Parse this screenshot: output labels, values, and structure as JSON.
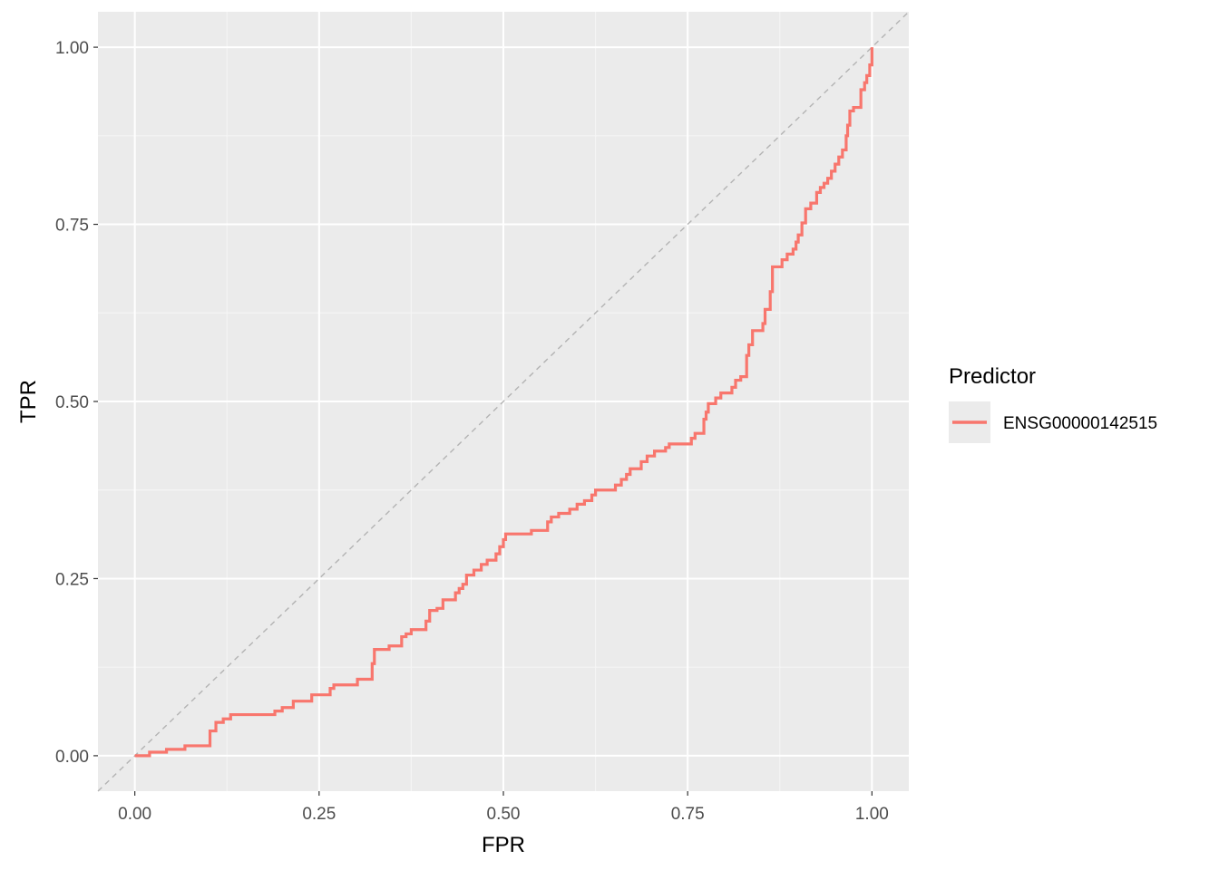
{
  "chart_data": {
    "type": "line",
    "title": "",
    "xlabel": "FPR",
    "ylabel": "TPR",
    "xlim": [
      -0.05,
      1.05
    ],
    "ylim": [
      -0.05,
      1.05
    ],
    "x_ticks": [
      "0.00",
      "0.25",
      "0.50",
      "0.75",
      "1.00"
    ],
    "y_ticks": [
      "0.00",
      "0.25",
      "0.50",
      "0.75",
      "1.00"
    ],
    "grid": true,
    "legend_position": "right",
    "legend_title": "Predictor",
    "colors": {
      "panel_background": "#EBEBEB",
      "grid_major": "#FFFFFF",
      "grid_minor": "#F5F5F5",
      "diagonal": "#B3B3B3",
      "series": "#F8766D",
      "legend_key_background": "#EBEBEB"
    },
    "reference_line": {
      "style": "dashed",
      "from": [
        0,
        0
      ],
      "to": [
        1,
        1
      ]
    },
    "series": [
      {
        "name": "ENSG00000142515",
        "line_style": "step",
        "points": [
          [
            0.0,
            0.0
          ],
          [
            0.02,
            0.0
          ],
          [
            0.02,
            0.005
          ],
          [
            0.043,
            0.005
          ],
          [
            0.043,
            0.009
          ],
          [
            0.068,
            0.009
          ],
          [
            0.068,
            0.014
          ],
          [
            0.102,
            0.014
          ],
          [
            0.102,
            0.035
          ],
          [
            0.11,
            0.035
          ],
          [
            0.11,
            0.047
          ],
          [
            0.12,
            0.047
          ],
          [
            0.12,
            0.052
          ],
          [
            0.13,
            0.052
          ],
          [
            0.13,
            0.058
          ],
          [
            0.19,
            0.058
          ],
          [
            0.19,
            0.063
          ],
          [
            0.2,
            0.063
          ],
          [
            0.2,
            0.068
          ],
          [
            0.215,
            0.068
          ],
          [
            0.215,
            0.077
          ],
          [
            0.24,
            0.077
          ],
          [
            0.24,
            0.086
          ],
          [
            0.265,
            0.086
          ],
          [
            0.265,
            0.095
          ],
          [
            0.27,
            0.095
          ],
          [
            0.27,
            0.1
          ],
          [
            0.302,
            0.1
          ],
          [
            0.302,
            0.108
          ],
          [
            0.322,
            0.108
          ],
          [
            0.322,
            0.13
          ],
          [
            0.325,
            0.13
          ],
          [
            0.325,
            0.15
          ],
          [
            0.345,
            0.15
          ],
          [
            0.345,
            0.155
          ],
          [
            0.362,
            0.155
          ],
          [
            0.362,
            0.168
          ],
          [
            0.368,
            0.168
          ],
          [
            0.368,
            0.172
          ],
          [
            0.375,
            0.172
          ],
          [
            0.375,
            0.178
          ],
          [
            0.395,
            0.178
          ],
          [
            0.395,
            0.19
          ],
          [
            0.4,
            0.19
          ],
          [
            0.4,
            0.205
          ],
          [
            0.41,
            0.205
          ],
          [
            0.41,
            0.208
          ],
          [
            0.418,
            0.208
          ],
          [
            0.418,
            0.22
          ],
          [
            0.435,
            0.22
          ],
          [
            0.435,
            0.23
          ],
          [
            0.44,
            0.23
          ],
          [
            0.44,
            0.236
          ],
          [
            0.445,
            0.236
          ],
          [
            0.445,
            0.242
          ],
          [
            0.45,
            0.242
          ],
          [
            0.45,
            0.255
          ],
          [
            0.46,
            0.255
          ],
          [
            0.46,
            0.262
          ],
          [
            0.47,
            0.262
          ],
          [
            0.47,
            0.27
          ],
          [
            0.478,
            0.27
          ],
          [
            0.478,
            0.276
          ],
          [
            0.49,
            0.276
          ],
          [
            0.49,
            0.285
          ],
          [
            0.495,
            0.285
          ],
          [
            0.495,
            0.295
          ],
          [
            0.5,
            0.295
          ],
          [
            0.5,
            0.305
          ],
          [
            0.503,
            0.305
          ],
          [
            0.503,
            0.313
          ],
          [
            0.538,
            0.313
          ],
          [
            0.538,
            0.318
          ],
          [
            0.56,
            0.318
          ],
          [
            0.56,
            0.33
          ],
          [
            0.565,
            0.33
          ],
          [
            0.565,
            0.337
          ],
          [
            0.575,
            0.337
          ],
          [
            0.575,
            0.342
          ],
          [
            0.59,
            0.342
          ],
          [
            0.59,
            0.348
          ],
          [
            0.6,
            0.348
          ],
          [
            0.6,
            0.355
          ],
          [
            0.61,
            0.355
          ],
          [
            0.61,
            0.36
          ],
          [
            0.62,
            0.36
          ],
          [
            0.62,
            0.368
          ],
          [
            0.625,
            0.368
          ],
          [
            0.625,
            0.375
          ],
          [
            0.652,
            0.375
          ],
          [
            0.652,
            0.382
          ],
          [
            0.66,
            0.382
          ],
          [
            0.66,
            0.39
          ],
          [
            0.667,
            0.39
          ],
          [
            0.667,
            0.397
          ],
          [
            0.672,
            0.397
          ],
          [
            0.672,
            0.405
          ],
          [
            0.687,
            0.405
          ],
          [
            0.687,
            0.415
          ],
          [
            0.695,
            0.415
          ],
          [
            0.695,
            0.423
          ],
          [
            0.705,
            0.423
          ],
          [
            0.705,
            0.43
          ],
          [
            0.72,
            0.43
          ],
          [
            0.72,
            0.435
          ],
          [
            0.725,
            0.435
          ],
          [
            0.725,
            0.44
          ],
          [
            0.755,
            0.44
          ],
          [
            0.755,
            0.448
          ],
          [
            0.76,
            0.448
          ],
          [
            0.76,
            0.455
          ],
          [
            0.772,
            0.455
          ],
          [
            0.772,
            0.475
          ],
          [
            0.775,
            0.475
          ],
          [
            0.775,
            0.485
          ],
          [
            0.778,
            0.485
          ],
          [
            0.778,
            0.497
          ],
          [
            0.788,
            0.497
          ],
          [
            0.788,
            0.505
          ],
          [
            0.795,
            0.505
          ],
          [
            0.795,
            0.512
          ],
          [
            0.81,
            0.512
          ],
          [
            0.81,
            0.52
          ],
          [
            0.815,
            0.52
          ],
          [
            0.815,
            0.53
          ],
          [
            0.822,
            0.53
          ],
          [
            0.822,
            0.535
          ],
          [
            0.83,
            0.535
          ],
          [
            0.83,
            0.565
          ],
          [
            0.833,
            0.565
          ],
          [
            0.833,
            0.58
          ],
          [
            0.838,
            0.58
          ],
          [
            0.838,
            0.6
          ],
          [
            0.852,
            0.6
          ],
          [
            0.852,
            0.61
          ],
          [
            0.855,
            0.61
          ],
          [
            0.855,
            0.63
          ],
          [
            0.862,
            0.63
          ],
          [
            0.862,
            0.655
          ],
          [
            0.865,
            0.655
          ],
          [
            0.865,
            0.69
          ],
          [
            0.878,
            0.69
          ],
          [
            0.878,
            0.7
          ],
          [
            0.885,
            0.7
          ],
          [
            0.885,
            0.708
          ],
          [
            0.893,
            0.708
          ],
          [
            0.893,
            0.715
          ],
          [
            0.897,
            0.715
          ],
          [
            0.897,
            0.725
          ],
          [
            0.9,
            0.725
          ],
          [
            0.9,
            0.735
          ],
          [
            0.905,
            0.735
          ],
          [
            0.905,
            0.752
          ],
          [
            0.91,
            0.752
          ],
          [
            0.91,
            0.772
          ],
          [
            0.917,
            0.772
          ],
          [
            0.917,
            0.78
          ],
          [
            0.925,
            0.78
          ],
          [
            0.925,
            0.795
          ],
          [
            0.93,
            0.795
          ],
          [
            0.93,
            0.802
          ],
          [
            0.935,
            0.802
          ],
          [
            0.935,
            0.808
          ],
          [
            0.94,
            0.808
          ],
          [
            0.94,
            0.815
          ],
          [
            0.945,
            0.815
          ],
          [
            0.945,
            0.825
          ],
          [
            0.95,
            0.825
          ],
          [
            0.95,
            0.835
          ],
          [
            0.955,
            0.835
          ],
          [
            0.955,
            0.845
          ],
          [
            0.96,
            0.845
          ],
          [
            0.96,
            0.855
          ],
          [
            0.965,
            0.855
          ],
          [
            0.965,
            0.875
          ],
          [
            0.967,
            0.875
          ],
          [
            0.967,
            0.89
          ],
          [
            0.97,
            0.89
          ],
          [
            0.97,
            0.91
          ],
          [
            0.975,
            0.91
          ],
          [
            0.975,
            0.915
          ],
          [
            0.985,
            0.915
          ],
          [
            0.985,
            0.94
          ],
          [
            0.99,
            0.94
          ],
          [
            0.99,
            0.95
          ],
          [
            0.993,
            0.95
          ],
          [
            0.993,
            0.96
          ],
          [
            0.997,
            0.96
          ],
          [
            0.997,
            0.975
          ],
          [
            1.0,
            0.975
          ],
          [
            1.0,
            1.0
          ]
        ]
      }
    ]
  }
}
